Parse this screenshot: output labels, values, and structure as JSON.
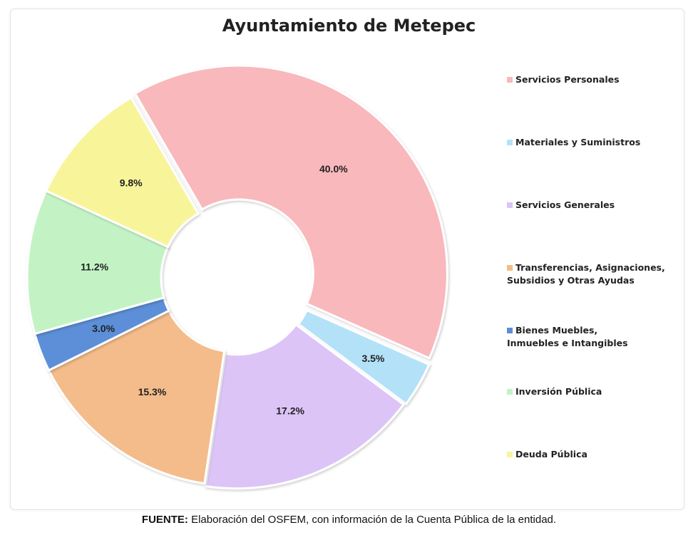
{
  "chart_data": {
    "type": "pie",
    "title": "Ayuntamiento de Metepec",
    "categories": [
      "Servicios Personales",
      "Materiales y Suministros",
      "Servicios Generales",
      "Transferencias, Asignaciones, Subsidios y Otras Ayudas",
      "Bienes Muebles, Inmuebles e Intangibles",
      "Inversión Pública",
      "Deuda Pública"
    ],
    "values": [
      40.0,
      3.5,
      17.2,
      15.3,
      3.0,
      11.2,
      9.8
    ],
    "labels": [
      "40.0%",
      "3.5%",
      "17.2%",
      "15.3%",
      "3.0%",
      "11.2%",
      "9.8%"
    ],
    "colors": [
      "#f8b8bc",
      "#b3e2f8",
      "#dcc4f7",
      "#f4bc8a",
      "#5c8fd8",
      "#c3f3c5",
      "#f8f49a"
    ],
    "legend_lines": [
      [
        "Servicios Personales"
      ],
      [
        "Materiales y Suministros"
      ],
      [
        "Servicios Generales"
      ],
      [
        "Transferencias, Asignaciones,",
        "Subsidios y Otras Ayudas"
      ],
      [
        "Bienes Muebles,",
        "Inmuebles e Intangibles"
      ],
      [
        "Inversión Pública"
      ],
      [
        "Deuda Pública"
      ]
    ],
    "legend_position": "right",
    "donut": true
  },
  "source": {
    "label": "FUENTE:",
    "text": " Elaboración del OSFEM, con información de la Cuenta Pública de la entidad."
  }
}
